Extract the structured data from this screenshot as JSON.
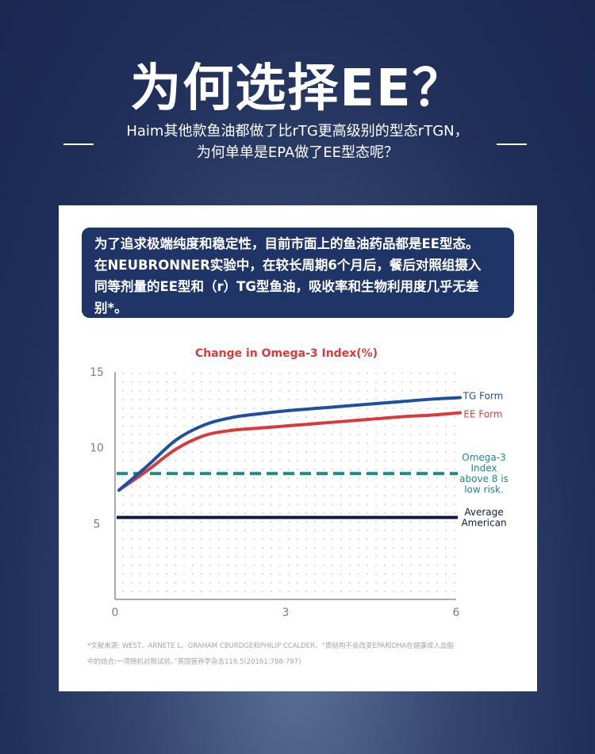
{
  "header": {
    "title": "为何选择EE？",
    "subtitle_line1": "Haim其他款鱼油都做了比rTG更高级别的型态rTGN，",
    "subtitle_line2": "为何单单是EPA做了EE型态呢？"
  },
  "callout": {
    "lines": [
      "为了追求极端纯度和稳定性，目前市面上的鱼油药品都是EE型态。",
      "在NEUBRONNER实验中，在较长周期6个月后，餐后对照组摄入",
      "同等剂量的EE型和（r）TG型鱼油，吸收率和生物利用度几乎无差",
      "别*。"
    ]
  },
  "chart_data": {
    "type": "line",
    "title": "Change in Omega-3 Index(%)",
    "xlabel": "",
    "ylabel": "",
    "xlim": [
      0,
      6
    ],
    "ylim": [
      0,
      15
    ],
    "x_ticks": [
      "0",
      "3",
      "6"
    ],
    "y_ticks": [
      "5",
      "10",
      "15"
    ],
    "grid": "dotted",
    "series": [
      {
        "name": "TG Form",
        "color": "#1f4fa0",
        "x": [
          0,
          0.5,
          1,
          1.5,
          2,
          2.5,
          3,
          3.5,
          4,
          4.5,
          5,
          5.5,
          6
        ],
        "y": [
          7.2,
          8.8,
          10.5,
          11.5,
          12.0,
          12.25,
          12.45,
          12.6,
          12.75,
          12.9,
          13.05,
          13.2,
          13.3
        ]
      },
      {
        "name": "EE Form",
        "color": "#d83b3b",
        "x": [
          0,
          0.5,
          1,
          1.5,
          2,
          2.5,
          3,
          3.5,
          4,
          4.5,
          5,
          5.5,
          6
        ],
        "y": [
          7.2,
          8.5,
          9.9,
          10.8,
          11.15,
          11.3,
          11.45,
          11.6,
          11.75,
          11.9,
          12.05,
          12.15,
          12.3
        ]
      }
    ],
    "reference_lines": [
      {
        "label_lines": [
          "Omega-3",
          "Index",
          "above 8 is",
          "low risk."
        ],
        "y": 8.3,
        "style": "dashed",
        "color": "#198a8a"
      },
      {
        "label_lines": [
          "Average",
          "American"
        ],
        "y": 5.4,
        "style": "solid",
        "color": "#0f1a3d"
      }
    ],
    "legend_placement": "right"
  },
  "footnote": {
    "line1": "*文献来源: WEST、ARNETE L、GRAHAM CBURDGE和PHILIP CCALDER。“质结构不会改变EPA和DHA在健康成人血脂",
    "line2": "中的结合:一项随机对照试验。”英国营养学杂志116.5(20161:788-797)"
  }
}
